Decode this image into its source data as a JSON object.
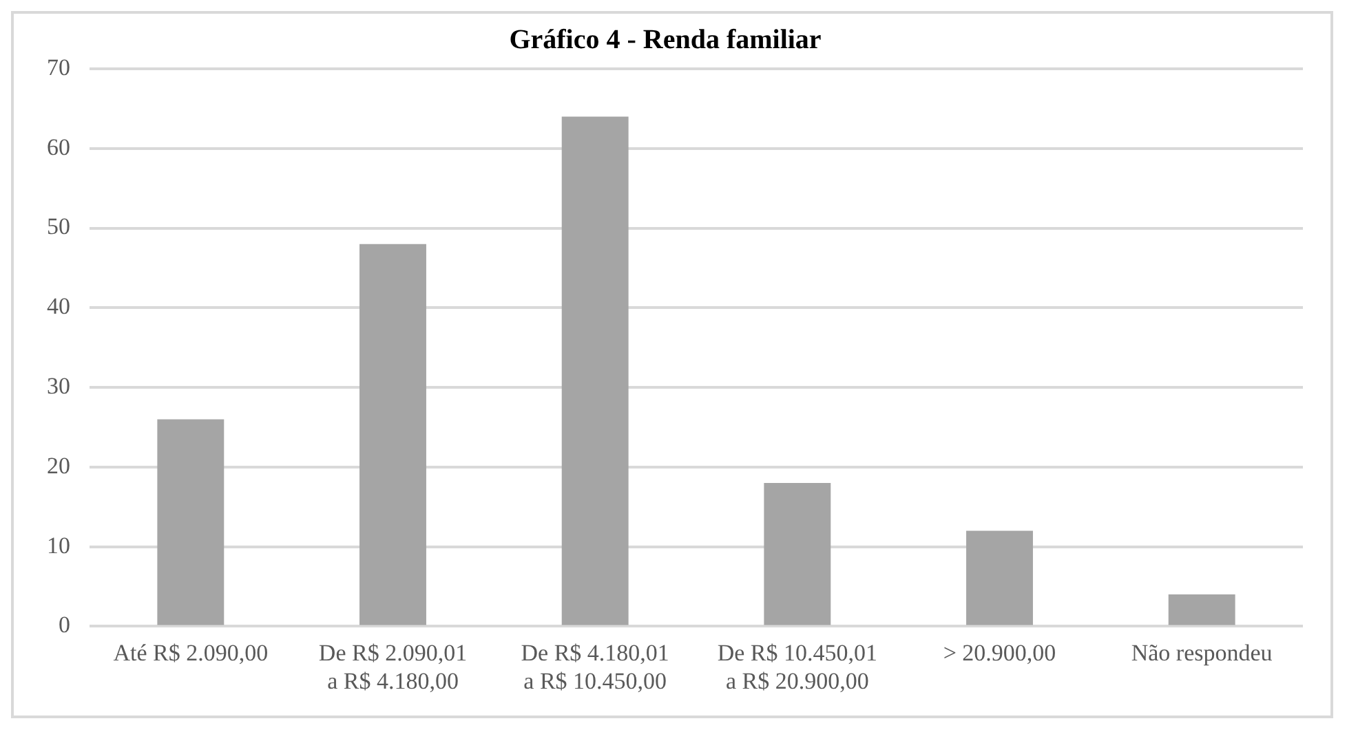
{
  "chart_data": {
    "type": "bar",
    "title": "Gráfico 4 - Renda familiar",
    "categories": [
      "Até R$ 2.090,00",
      "De R$ 2.090,01 a R$ 4.180,00",
      "De R$ 4.180,01 a R$ 10.450,00",
      "De R$ 10.450,01 a R$ 20.900,00",
      "> 20.900,00",
      "Não respondeu"
    ],
    "values": [
      26,
      48,
      64,
      18,
      12,
      4
    ],
    "color": "#a5a5a5",
    "ylim": [
      0,
      70
    ],
    "yticks": [
      0,
      10,
      20,
      30,
      40,
      50,
      60,
      70
    ],
    "grid": "y",
    "legend": false
  }
}
